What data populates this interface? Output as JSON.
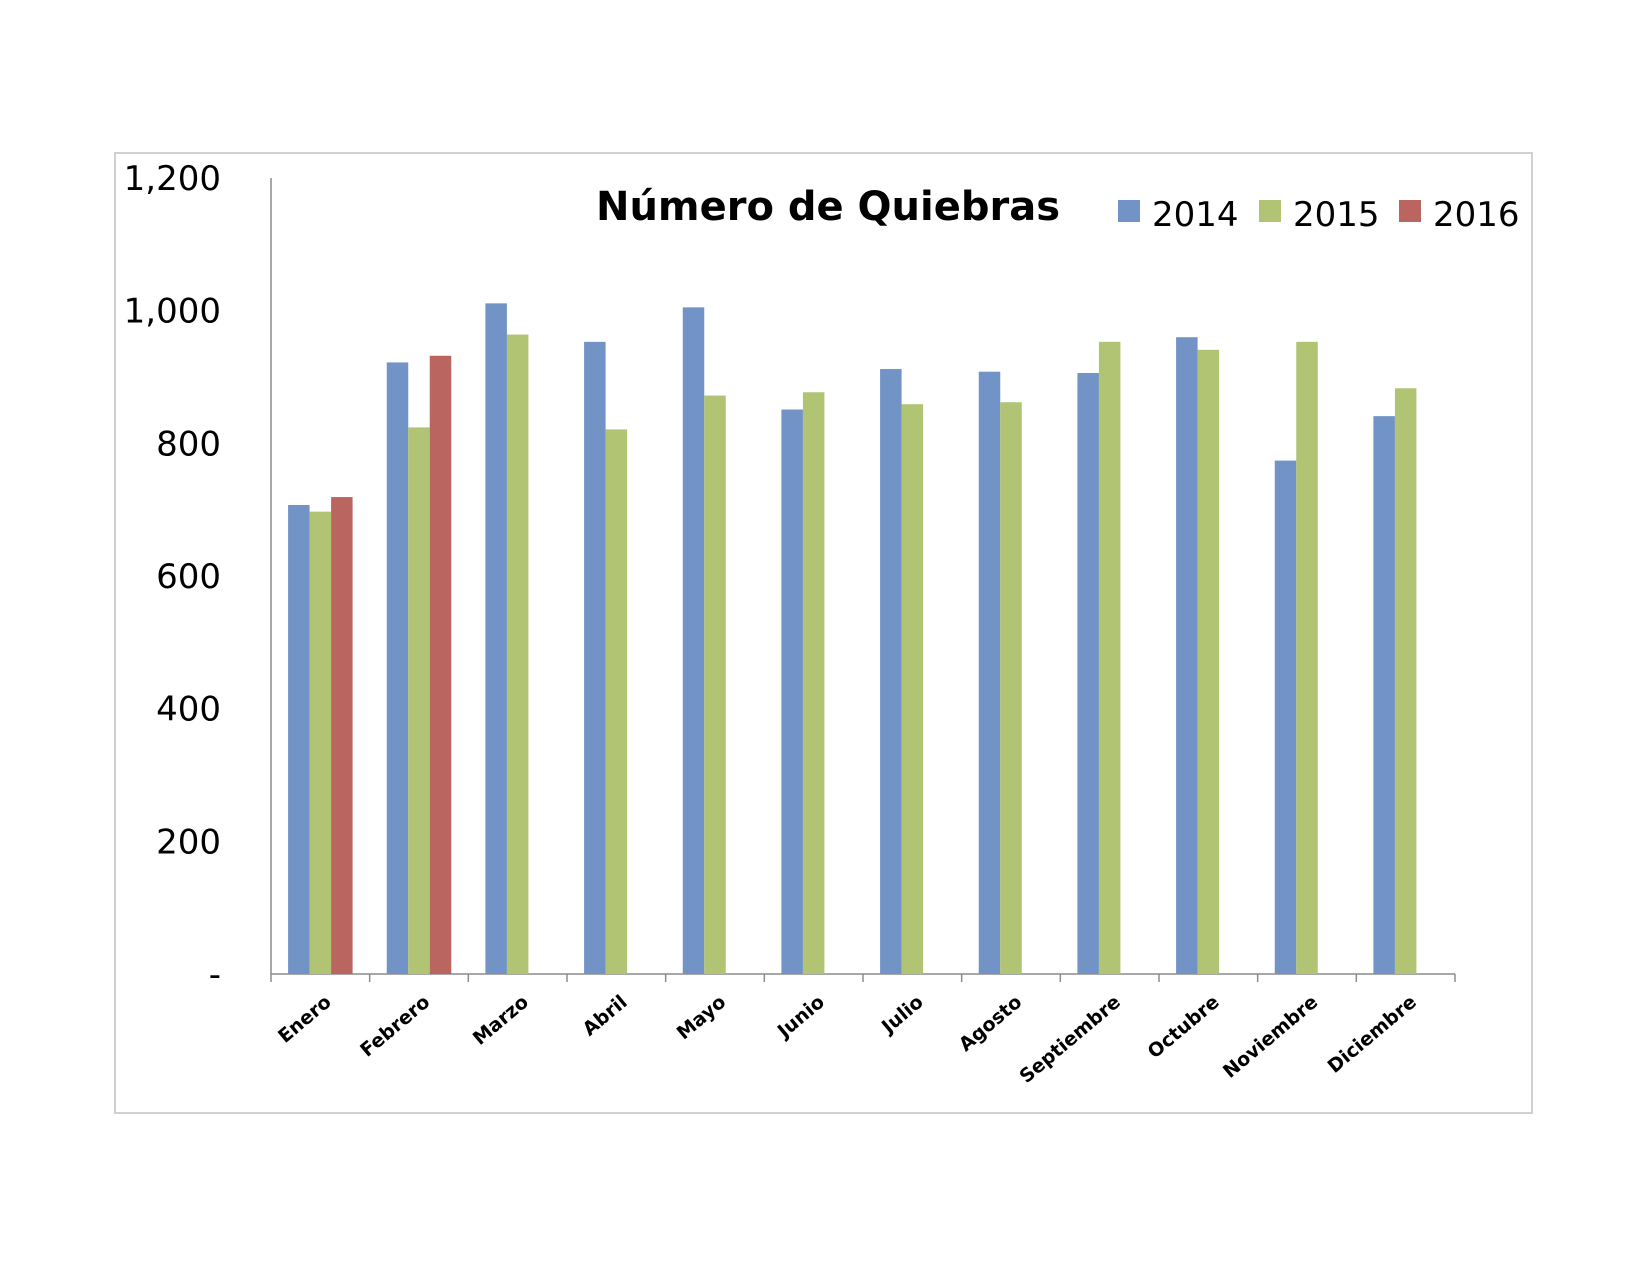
{
  "chart_data": {
    "type": "bar",
    "title": "Número de Quiebras",
    "xlabel": "",
    "ylabel": "",
    "ylim": [
      0,
      1200
    ],
    "yticks": [
      0,
      200,
      400,
      600,
      800,
      1000,
      1200
    ],
    "ytick_labels": [
      "-",
      "200",
      "400",
      "600",
      "800",
      "1,000",
      "1,200"
    ],
    "grid": false,
    "legend_position": "top-right",
    "categories": [
      "Enero",
      "Febrero",
      "Marzo",
      "Abril",
      "Mayo",
      "Junio",
      "Julio",
      "Agosto",
      "Septiembre",
      "Octubre",
      "Noviembre",
      "Diciembre"
    ],
    "series": [
      {
        "name": "2014",
        "color": "#7293c6",
        "values": [
          707,
          922,
          1011,
          953,
          1005,
          851,
          912,
          908,
          906,
          960,
          774,
          841
        ]
      },
      {
        "name": "2015",
        "color": "#b0c473",
        "values": [
          697,
          824,
          964,
          821,
          872,
          877,
          859,
          862,
          953,
          941,
          953,
          883
        ]
      },
      {
        "name": "2016",
        "color": "#bb6561",
        "values": [
          719,
          932,
          null,
          null,
          null,
          null,
          null,
          null,
          null,
          null,
          null,
          null
        ]
      }
    ]
  }
}
